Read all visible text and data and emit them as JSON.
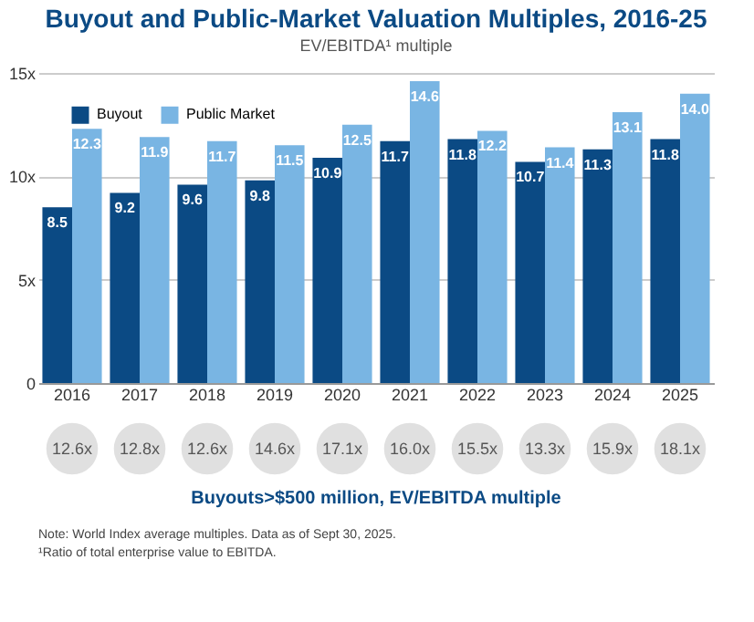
{
  "chart_data": [
    {
      "type": "bar",
      "title": "Buyout and Public-Market Valuation Multiples, 2016-25",
      "subtitle": "EV/EBITDA¹ multiple",
      "categories": [
        "2016",
        "2017",
        "2018",
        "2019",
        "2020",
        "2021",
        "2022",
        "2023",
        "2024",
        "2025"
      ],
      "series": [
        {
          "name": "Buyout",
          "color": "#0b4a84",
          "values": [
            8.5,
            9.2,
            9.6,
            9.8,
            10.9,
            11.7,
            11.8,
            10.7,
            11.3,
            11.8
          ],
          "value_labels": [
            "8.5",
            "9.2",
            "9.6",
            "9.8",
            "10.9",
            "11.7",
            "11.8",
            "10.7",
            "11.3",
            "11.8"
          ]
        },
        {
          "name": "Public Market",
          "color": "#79b5e3",
          "values": [
            12.3,
            11.9,
            11.7,
            11.5,
            12.5,
            14.6,
            12.2,
            11.4,
            13.1,
            14.0
          ],
          "value_labels": [
            "12.3",
            "11.9",
            "11.7",
            "11.5",
            "12.5",
            "14.6",
            "12.2",
            "11.4",
            "13.1",
            "14.0"
          ]
        }
      ],
      "ylim": [
        0,
        15
      ],
      "yticks": [
        0,
        {
          "value": 5,
          "label": "5x"
        },
        {
          "value": 10,
          "label": "10x"
        },
        {
          "value": 15,
          "label": "15x"
        }
      ],
      "grid": "y",
      "legend": "top left"
    },
    {
      "type": "other",
      "title": "Buyouts>$500 million, EV/EBITDA multiple",
      "value_labels": [
        "12.6x",
        "12.8x",
        "12.6x",
        "14.6x",
        "17.1x",
        "16.0x",
        "15.5x",
        "13.3x",
        "15.9x",
        "18.1x"
      ],
      "color": "#e0e0e0",
      "annotations": [
        "Note: World Index average multiples. Data as of Sept 30, 2025.",
        "¹Ratio of total enterprise value to EBITDA."
      ]
    }
  ]
}
